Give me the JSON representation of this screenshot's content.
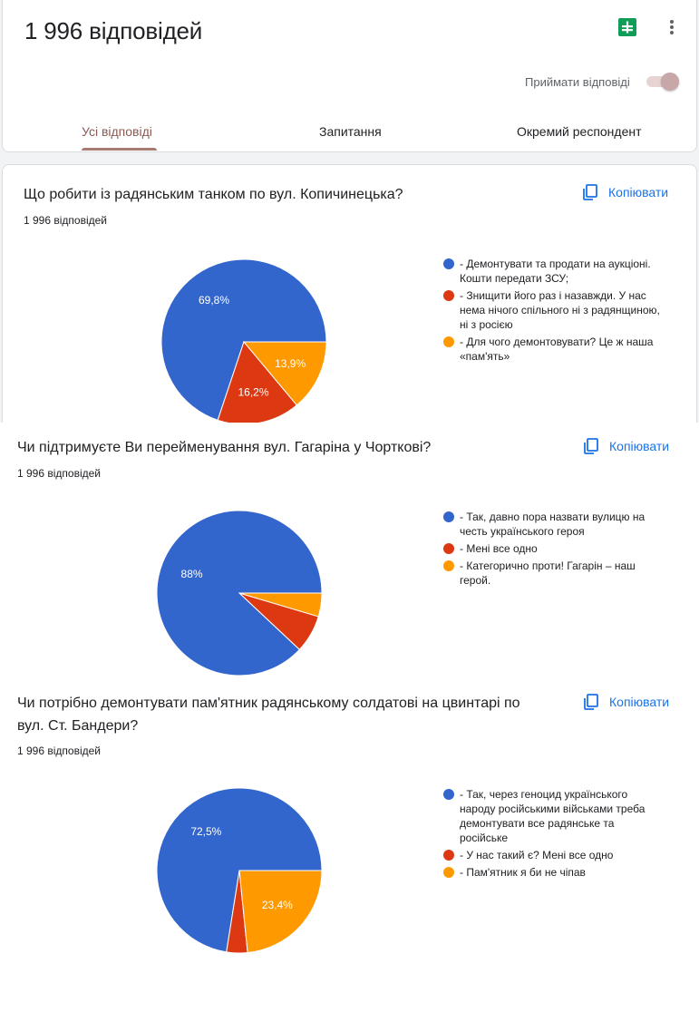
{
  "header": {
    "title": "1 996 відповідей",
    "accept_label": "Приймати відповіді",
    "tabs": [
      "Усі відповіді",
      "Запитання",
      "Окремий респондент"
    ]
  },
  "copy_label": "Копіювати",
  "colors": {
    "blue": "#3366cc",
    "red": "#dc3912",
    "orange": "#ff9900"
  },
  "questions": [
    {
      "title": "Що робити із радянським танком по вул. Копичинецька?",
      "title_line2": "",
      "count": "1 996 відповідей",
      "options": [
        "- Демонтувати та продати на аукціоні. Кошти передати ЗСУ;",
        "- Знищити його раз і назавжди. У нас нема нічого спільного ні з радянщиною, ні з росією",
        "- Для чого демонтовувати? Це ж наша «пам'ять»"
      ],
      "labels": [
        "69,8%",
        "16,2%",
        "13,9%"
      ]
    },
    {
      "title": "Чи підтримуєте Ви перейменування вул. Гагаріна у Чорткові?",
      "title_line2": "",
      "count": "1 996 відповідей",
      "options": [
        "- Так, давно пора назвати вулицю на честь українського героя",
        "- Мені все одно",
        "- Категорично проти! Гагарін – наш герой."
      ],
      "labels": [
        "88%",
        "",
        ""
      ]
    },
    {
      "title": "Чи потрібно демонтувати пам'ятник радянському солдатові на цвинтарі по",
      "title_line2": "вул. Ст. Бандери?",
      "count": "1 996 відповідей",
      "options": [
        "- Так, через геноцид українського народу російськими військами треба демонтувати все радянське та російське",
        "- У нас такий є? Мені все одно",
        "- Пам'ятник я би не чіпав"
      ],
      "labels": [
        "72,5%",
        "",
        "23,4%"
      ]
    }
  ],
  "chart_data": [
    {
      "type": "pie",
      "title": "Що робити із радянським танком по вул. Копичинецька?",
      "categories": [
        "- Демонтувати та продати на аукціоні. Кошти передати ЗСУ;",
        "- Знищити його раз і назавжди. У нас нема нічого спільного ні з радянщиною, ні з росією",
        "- Для чого демонтовувати? Це ж наша «пам'ять»"
      ],
      "values": [
        69.8,
        16.2,
        13.9
      ]
    },
    {
      "type": "pie",
      "title": "Чи підтримуєте Ви перейменування вул. Гагаріна у Чорткові?",
      "categories": [
        "- Так, давно пора назвати вулицю на честь українського героя",
        "- Мені все одно",
        "- Категорично проти! Гагарін – наш герой."
      ],
      "values": [
        88,
        7.4,
        4.6
      ]
    },
    {
      "type": "pie",
      "title": "Чи потрібно демонтувати пам'ятник радянському солдатові на цвинтарі по вул. Ст. Бандери?",
      "categories": [
        "- Так, через геноцид українського народу російськими військами треба демонтувати все радянське та російське",
        "- У нас такий є? Мені все одно",
        "- Пам'ятник я би не чіпав"
      ],
      "values": [
        72.5,
        4.1,
        23.4
      ]
    }
  ]
}
